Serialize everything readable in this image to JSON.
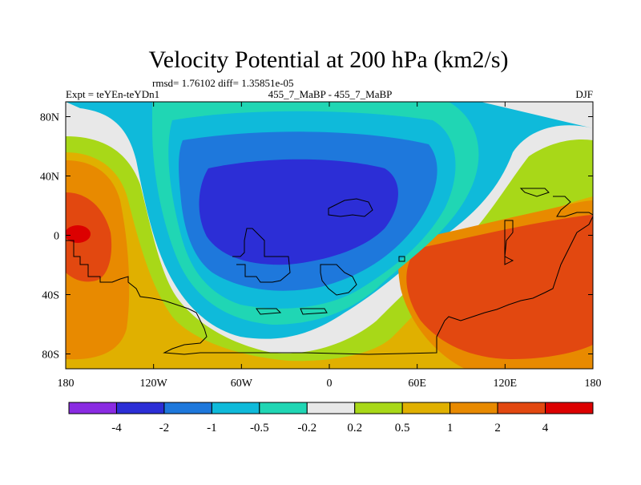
{
  "chart_data": {
    "type": "heatmap",
    "title": "Velocity Potential at 200 hPa (km2/s)",
    "stats": "rmsd= 1.76102 diff= 1.35851e-05",
    "left_label": "Expt = teYEn-teYDn1",
    "center_label": "455_7_MaBP - 455_7_MaBP",
    "right_label": "DJF",
    "x_ticks": [
      {
        "value": -180,
        "label": "180"
      },
      {
        "value": -120,
        "label": "120W"
      },
      {
        "value": -60,
        "label": "60W"
      },
      {
        "value": 0,
        "label": "0"
      },
      {
        "value": 60,
        "label": "60E"
      },
      {
        "value": 120,
        "label": "120E"
      },
      {
        "value": 180,
        "label": "180"
      }
    ],
    "y_ticks": [
      {
        "value": 80,
        "label": "80N"
      },
      {
        "value": 40,
        "label": "40N"
      },
      {
        "value": 0,
        "label": "0"
      },
      {
        "value": -40,
        "label": "40S"
      },
      {
        "value": -80,
        "label": "80S"
      }
    ],
    "xlim": [
      -180,
      180
    ],
    "ylim": [
      -90,
      90
    ],
    "contour_levels": [
      "-4",
      "-2",
      "-1",
      "-0.5",
      "-0.2",
      "0.2",
      "0.5",
      "1",
      "2",
      "4"
    ],
    "colors": [
      "#8a2be2",
      "#2c2ed6",
      "#1e78dc",
      "#0fbada",
      "#20d6b4",
      "#e8e8e8",
      "#a8d818",
      "#e0b000",
      "#e88a00",
      "#e24810",
      "#dc0000"
    ]
  }
}
